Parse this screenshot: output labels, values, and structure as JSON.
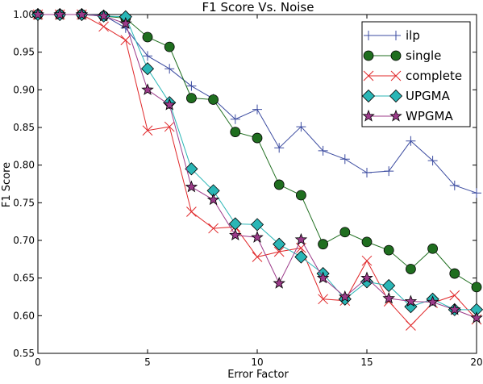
{
  "chart_data": {
    "type": "line",
    "title": "F1 Score Vs. Noise",
    "xlabel": "Error Factor",
    "ylabel": "F1 Score",
    "xlim": [
      0,
      20
    ],
    "ylim": [
      0.55,
      1.0
    ],
    "x_ticks": [
      "0",
      "5",
      "10",
      "15",
      "20"
    ],
    "y_ticks": [
      "0.55",
      "0.60",
      "0.65",
      "0.70",
      "0.75",
      "0.80",
      "0.85",
      "0.90",
      "0.95",
      "1.00"
    ],
    "legend_position": "top-right",
    "grid": false,
    "x": [
      0,
      1,
      2,
      3,
      4,
      5,
      6,
      7,
      8,
      9,
      10,
      11,
      12,
      13,
      14,
      15,
      16,
      17,
      18,
      19,
      20
    ],
    "series": [
      {
        "name": "ilp",
        "color": "#3b4ba0",
        "marker": "plus",
        "values": [
          1.0,
          1.0,
          1.0,
          0.999,
          0.982,
          0.945,
          0.928,
          0.905,
          0.888,
          0.861,
          0.874,
          0.823,
          0.851,
          0.819,
          0.808,
          0.79,
          0.792,
          0.832,
          0.806,
          0.773,
          0.763
        ]
      },
      {
        "name": "single",
        "color": "#1f6e1f",
        "marker": "circle",
        "values": [
          1.0,
          1.0,
          1.0,
          0.998,
          0.995,
          0.97,
          0.957,
          0.889,
          0.887,
          0.844,
          0.836,
          0.774,
          0.76,
          0.695,
          0.711,
          0.698,
          0.687,
          0.662,
          0.689,
          0.656,
          0.638
        ]
      },
      {
        "name": "complete",
        "color": "#e0282a",
        "marker": "x",
        "values": [
          1.0,
          1.0,
          1.0,
          0.984,
          0.966,
          0.846,
          0.851,
          0.738,
          0.716,
          0.718,
          0.678,
          0.685,
          0.69,
          0.622,
          0.62,
          0.673,
          0.619,
          0.587,
          0.617,
          0.627,
          0.595
        ]
      },
      {
        "name": "UPGMA",
        "color": "#2ab6b6",
        "marker": "diamond",
        "values": [
          1.0,
          1.0,
          1.0,
          0.998,
          0.997,
          0.928,
          0.883,
          0.795,
          0.766,
          0.722,
          0.721,
          0.695,
          0.678,
          0.656,
          0.622,
          0.645,
          0.64,
          0.612,
          0.622,
          0.608,
          0.608
        ]
      },
      {
        "name": "WPGMA",
        "color": "#9c3b8a",
        "marker": "star",
        "values": [
          1.0,
          1.0,
          1.0,
          0.998,
          0.988,
          0.9,
          0.88,
          0.771,
          0.754,
          0.707,
          0.704,
          0.643,
          0.701,
          0.65,
          0.625,
          0.65,
          0.623,
          0.619,
          0.618,
          0.608,
          0.597
        ]
      }
    ]
  }
}
